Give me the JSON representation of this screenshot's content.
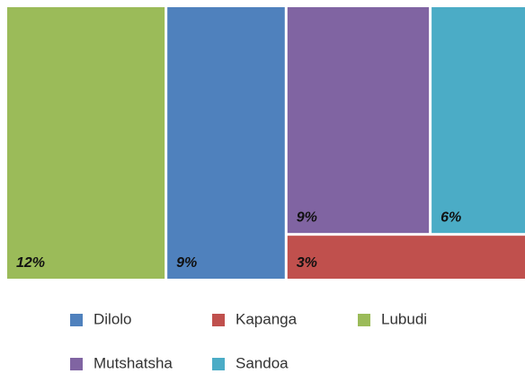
{
  "chart_data": {
    "type": "treemap",
    "categories": [
      "Dilolo",
      "Kapanga",
      "Lubudi",
      "Mutshatsha",
      "Sandoa"
    ],
    "values": [
      9,
      3,
      12,
      9,
      6
    ],
    "value_labels": [
      "9%",
      "3%",
      "12%",
      "9%",
      "6%"
    ],
    "colors": [
      "#4f81bd",
      "#c0504d",
      "#9bbb59",
      "#8064a2",
      "#4bacc6"
    ]
  }
}
